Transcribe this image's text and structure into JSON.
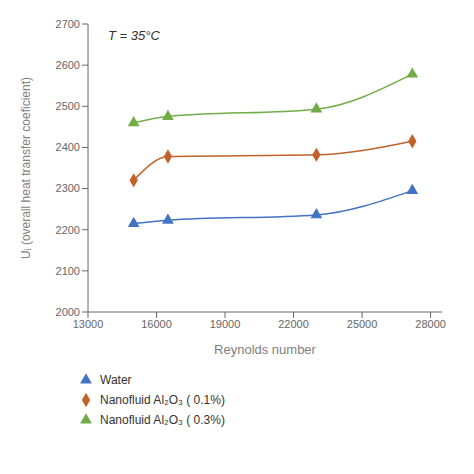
{
  "chart_data": {
    "type": "line",
    "annotation": "T = 35°C",
    "xlabel": "Reynolds number",
    "ylabel": "Uᵢ (overall heat transfer coeficient)",
    "xlim": [
      13000,
      28500
    ],
    "ylim": [
      2000,
      2700
    ],
    "xticks": [
      13000,
      16000,
      19000,
      22000,
      25000,
      28000
    ],
    "yticks": [
      2000,
      2100,
      2200,
      2300,
      2400,
      2500,
      2600,
      2700
    ],
    "series": [
      {
        "name": "Water",
        "color": "#4472c4",
        "marker": "triangle",
        "x": [
          15000,
          16500,
          23000,
          27200
        ],
        "values": [
          2215,
          2223,
          2236,
          2295
        ]
      },
      {
        "name": "Nanofluid Al₂O₃ ( 0.1%)",
        "color": "#c0622a",
        "marker": "diamond",
        "x": [
          15000,
          16500,
          23000,
          27200
        ],
        "values": [
          2320,
          2378,
          2382,
          2415
        ]
      },
      {
        "name": "Nanofluid Al₂O₃ ( 0.3%)",
        "color": "#70ad47",
        "marker": "triangle",
        "x": [
          15000,
          16500,
          23000,
          27200
        ],
        "values": [
          2460,
          2475,
          2493,
          2578
        ]
      }
    ]
  }
}
